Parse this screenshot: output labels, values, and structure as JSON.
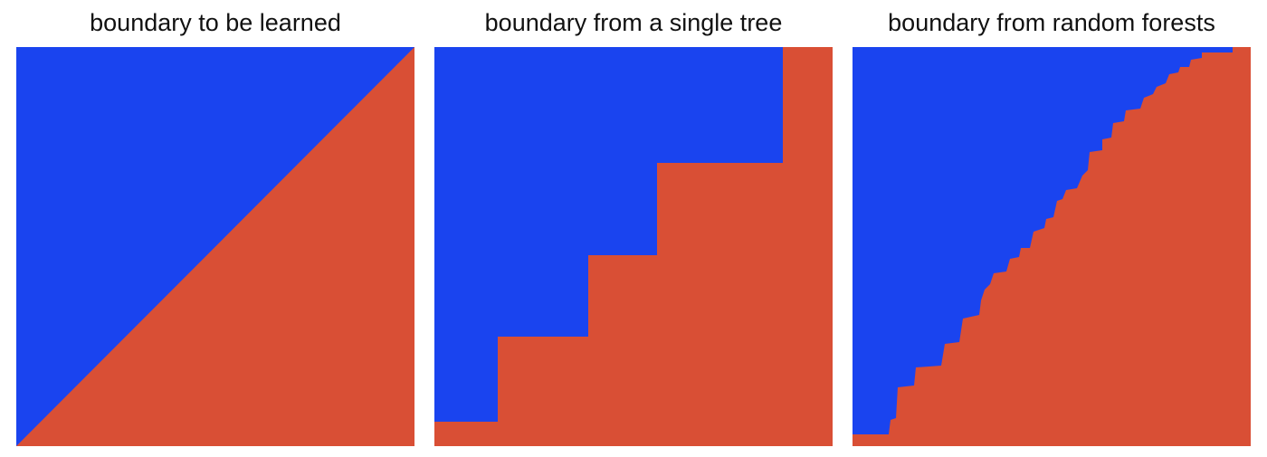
{
  "colors": {
    "class_a": "#1a44ef",
    "class_b": "#d94f35"
  },
  "panels": [
    {
      "title": "boundary to be learned"
    },
    {
      "title": "boundary from a single tree"
    },
    {
      "title": "boundary from random forests"
    }
  ]
}
